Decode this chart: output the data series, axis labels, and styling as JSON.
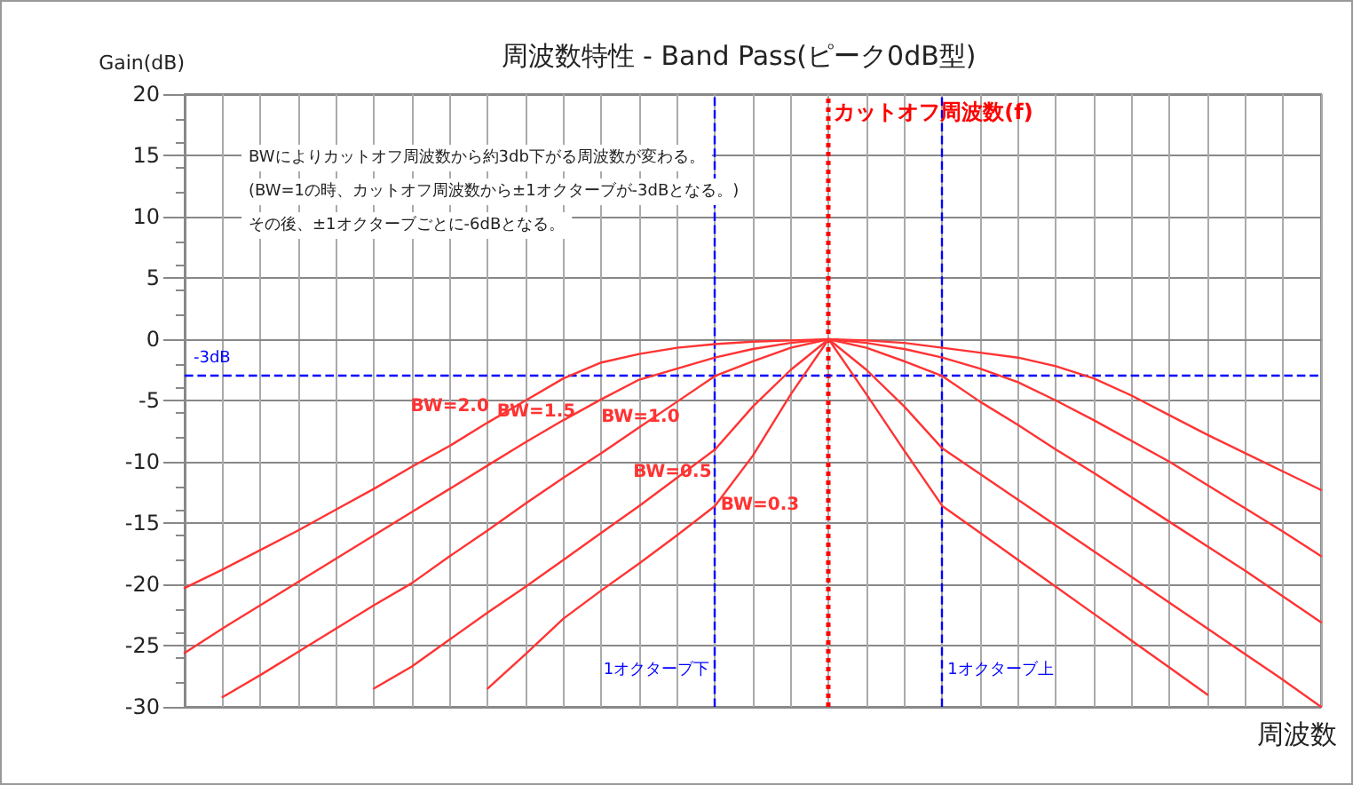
{
  "chart_data": {
    "type": "line",
    "title": "周波数特性 - Band Pass(ピーク0dB型)",
    "xlabel": "周波数",
    "ylabel": "Gain(dB)",
    "categories": [
      null,
      null,
      null,
      null,
      null,
      null,
      null,
      null,
      null,
      null,
      null,
      null,
      null,
      null,
      null,
      null,
      null,
      null,
      null,
      null,
      null,
      null,
      null,
      null,
      null,
      null,
      null,
      null,
      null,
      null,
      null
    ],
    "ylim": [
      -30,
      20
    ],
    "yticks": [
      -30,
      -25,
      -20,
      -15,
      -10,
      -5,
      0,
      5,
      10,
      15,
      20
    ],
    "tick_labels": "y",
    "grid": true,
    "marker": "none",
    "line_style": "solid",
    "series": [
      {
        "name": "BW=2.0",
        "color": "#ff3333",
        "values": [
          -20.3,
          -18.8,
          -17.2,
          -15.6,
          -13.9,
          -12.2,
          -10.4,
          -8.7,
          -6.8,
          -5.0,
          -3.2,
          -1.9,
          -1.2,
          -0.7,
          -0.4,
          -0.2,
          -0.1,
          0,
          -0.1,
          -0.3,
          -0.7,
          -1.1,
          -1.5,
          -2.2,
          -3.2,
          -4.6,
          -6.2,
          -7.8,
          -9.3,
          -10.8,
          -12.3
        ]
      },
      {
        "name": "BW=1.5",
        "color": "#ff3333",
        "values": [
          -25.6,
          -23.6,
          -21.7,
          -19.8,
          -17.9,
          -16.0,
          -14.1,
          -12.2,
          -10.3,
          -8.4,
          -6.6,
          -4.9,
          -3.3,
          -2.4,
          -1.5,
          -0.8,
          -0.3,
          0,
          -0.3,
          -0.8,
          -1.5,
          -2.4,
          -3.5,
          -5.0,
          -6.6,
          -8.3,
          -10.0,
          -11.9,
          -13.8,
          -15.7,
          -17.7
        ]
      },
      {
        "name": "BW=1.0",
        "color": "#ff3333",
        "values": [
          null,
          -29.2,
          -27.4,
          -25.5,
          -23.6,
          -21.7,
          -19.9,
          -17.7,
          -15.6,
          -13.4,
          -11.3,
          -9.3,
          -7.2,
          -5.1,
          -3.0,
          -1.8,
          -0.7,
          0,
          -0.7,
          -1.8,
          -3.0,
          -5.1,
          -7.0,
          -9.0,
          -10.9,
          -12.9,
          -14.9,
          -16.9,
          -18.9,
          -21.0,
          -23.1
        ]
      },
      {
        "name": "BW=0.5",
        "color": "#ff3333",
        "values": [
          null,
          null,
          null,
          null,
          null,
          -28.5,
          -26.7,
          -24.5,
          -22.3,
          -20.2,
          -18.0,
          -15.8,
          -13.6,
          -11.3,
          -9.0,
          -5.5,
          -2.5,
          0,
          -2.5,
          -5.5,
          -8.9,
          -11.0,
          -13.1,
          -15.2,
          -17.3,
          -19.4,
          -21.5,
          -23.6,
          -25.7,
          -27.8,
          -30.0
        ]
      },
      {
        "name": "BW=0.3",
        "color": "#ff3333",
        "values": [
          null,
          null,
          null,
          null,
          null,
          null,
          null,
          null,
          -28.5,
          -25.7,
          -22.8,
          -20.5,
          -18.3,
          -16.0,
          -13.6,
          -9.5,
          -4.5,
          0,
          -4.5,
          -9.1,
          -13.6,
          -15.8,
          -18.0,
          -20.2,
          -22.4,
          -24.6,
          -26.8,
          -29.0,
          null,
          null,
          null
        ]
      }
    ],
    "ref_lines": [
      {
        "axis": "y",
        "value": -3,
        "label": "-3dB",
        "color": "#0000ff",
        "line_style": "dashed"
      }
    ],
    "annotations": [
      "BWによりカットオフ周波数から約3db下がる周波数が変わる。",
      "(BW=1の時、カットオフ周波数から±1オクターブが-3dBとなる。)",
      "その後、±1オクターブごとに-6dBとなる。",
      "1オクターブ下",
      "1オクターブ上",
      "カットオフ周波数(f)"
    ]
  }
}
